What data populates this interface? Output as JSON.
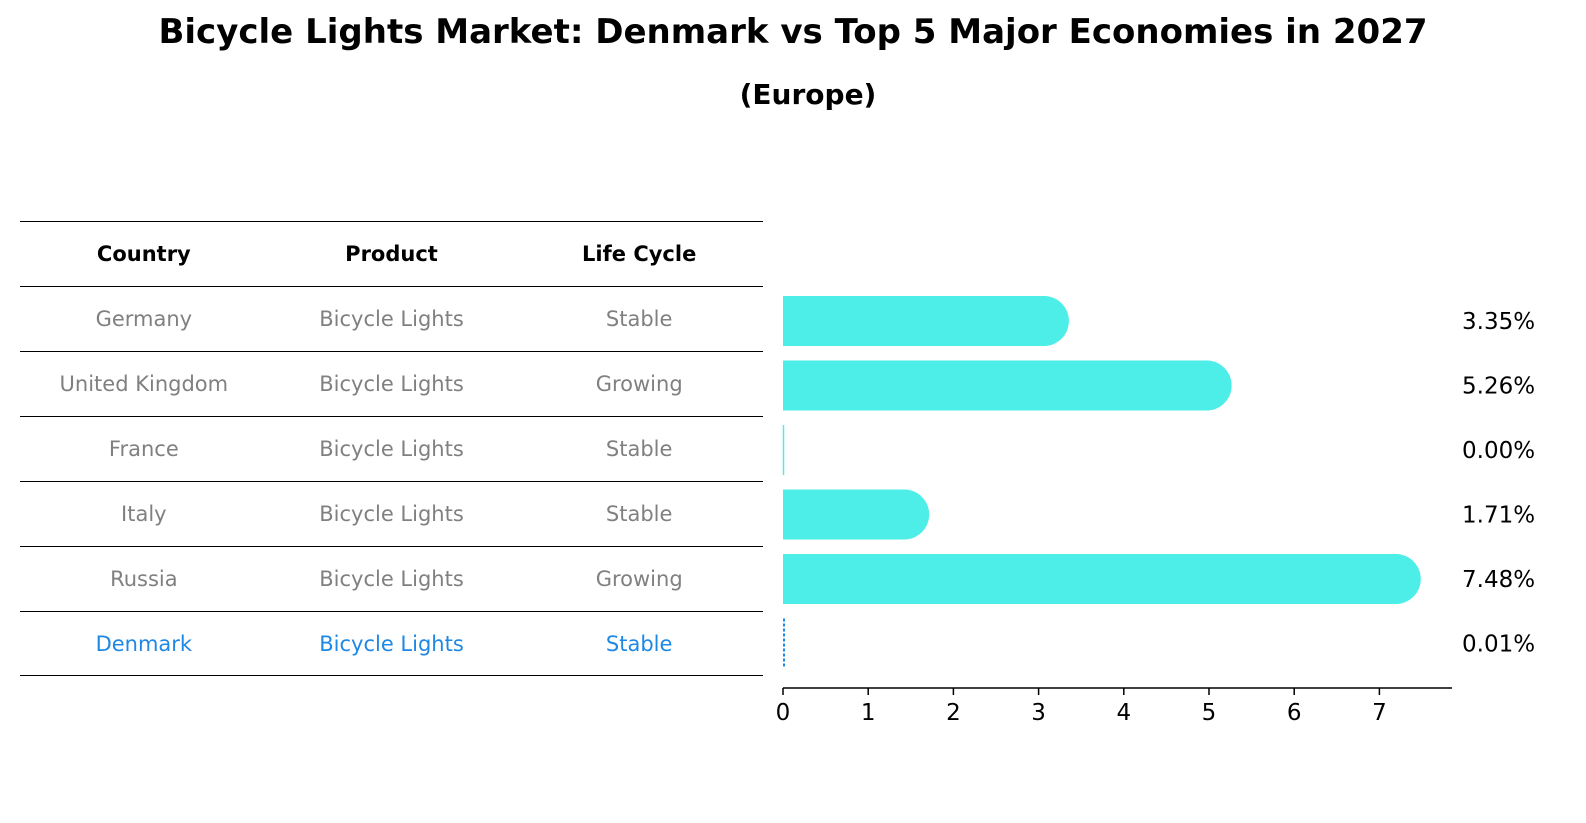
{
  "chart_data": {
    "type": "bar",
    "orientation": "horizontal",
    "title": "Bicycle Lights Market: Denmark vs Top 5 Major Economies in 2027",
    "subtitle": "(Europe)",
    "table_headers": [
      "Country",
      "Product",
      "Life Cycle"
    ],
    "rows": [
      {
        "country": "Germany",
        "product": "Bicycle Lights",
        "life_cycle": "Stable",
        "value": 3.35,
        "label": "3.35%"
      },
      {
        "country": "United Kingdom",
        "product": "Bicycle Lights",
        "life_cycle": "Growing",
        "value": 5.26,
        "label": "5.26%"
      },
      {
        "country": "France",
        "product": "Bicycle Lights",
        "life_cycle": "Stable",
        "value": 0.0,
        "label": "0.00%"
      },
      {
        "country": "Italy",
        "product": "Bicycle Lights",
        "life_cycle": "Stable",
        "value": 1.71,
        "label": "1.71%"
      },
      {
        "country": "Russia",
        "product": "Bicycle Lights",
        "life_cycle": "Growing",
        "value": 7.48,
        "label": "7.48%"
      },
      {
        "country": "Denmark",
        "product": "Bicycle Lights",
        "life_cycle": "Stable",
        "value": 0.01,
        "label": "0.01%",
        "highlight": true
      }
    ],
    "xticks": [
      0,
      1,
      2,
      3,
      4,
      5,
      6,
      7
    ],
    "xlim": [
      0,
      7.85
    ],
    "bar_color": "#4deee8",
    "highlight_color": "#1e88e5",
    "muted_text_color": "#808080"
  }
}
